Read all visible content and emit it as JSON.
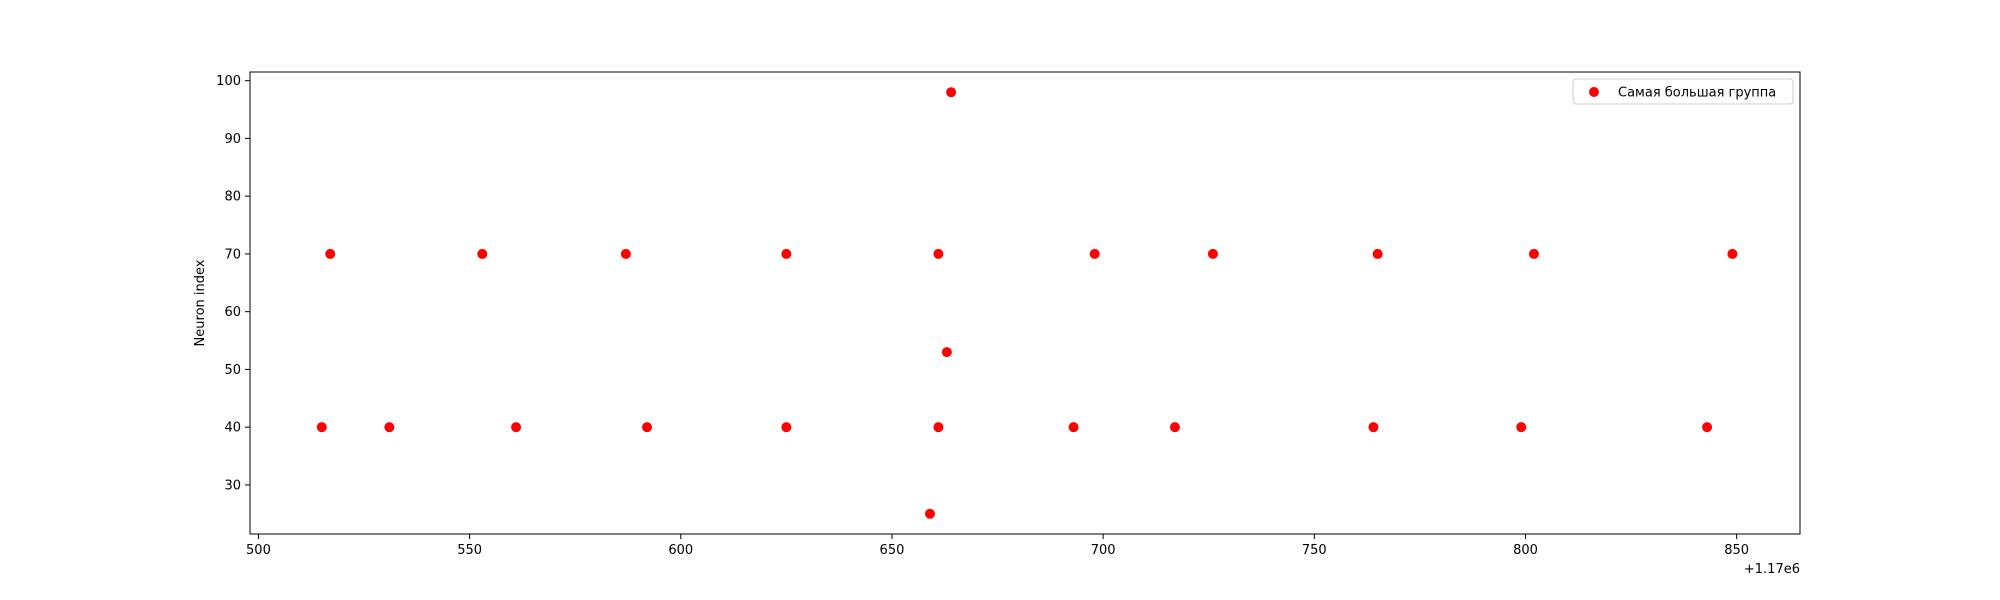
{
  "chart_data": {
    "type": "scatter",
    "title": "",
    "xlabel": "",
    "ylabel": "Neuron index",
    "x_offset_label": "+1.17e6",
    "xlim": [
      1170498,
      1170865
    ],
    "ylim": [
      21.5,
      101.5
    ],
    "x_ticks": [
      1170500,
      1170550,
      1170600,
      1170650,
      1170700,
      1170750,
      1170800,
      1170850
    ],
    "x_tick_labels": [
      "500",
      "550",
      "600",
      "650",
      "700",
      "750",
      "800",
      "850"
    ],
    "y_ticks": [
      30,
      40,
      50,
      60,
      70,
      80,
      90,
      100
    ],
    "y_tick_labels": [
      "30",
      "40",
      "50",
      "60",
      "70",
      "80",
      "90",
      "100"
    ],
    "grid": false,
    "legend_position": "upper-right",
    "series": [
      {
        "name": "Самая большая группа",
        "color": "#ff0000",
        "points": [
          [
            1170515,
            40
          ],
          [
            1170517,
            70
          ],
          [
            1170531,
            40
          ],
          [
            1170553,
            70
          ],
          [
            1170561,
            40
          ],
          [
            1170587,
            70
          ],
          [
            1170592,
            40
          ],
          [
            1170625,
            40
          ],
          [
            1170625,
            70
          ],
          [
            1170659,
            25
          ],
          [
            1170661,
            40
          ],
          [
            1170661,
            70
          ],
          [
            1170663,
            53
          ],
          [
            1170664,
            98
          ],
          [
            1170693,
            40
          ],
          [
            1170698,
            70
          ],
          [
            1170717,
            40
          ],
          [
            1170726,
            70
          ],
          [
            1170764,
            40
          ],
          [
            1170765,
            70
          ],
          [
            1170799,
            40
          ],
          [
            1170802,
            70
          ],
          [
            1170843,
            40
          ],
          [
            1170849,
            70
          ]
        ]
      }
    ]
  }
}
